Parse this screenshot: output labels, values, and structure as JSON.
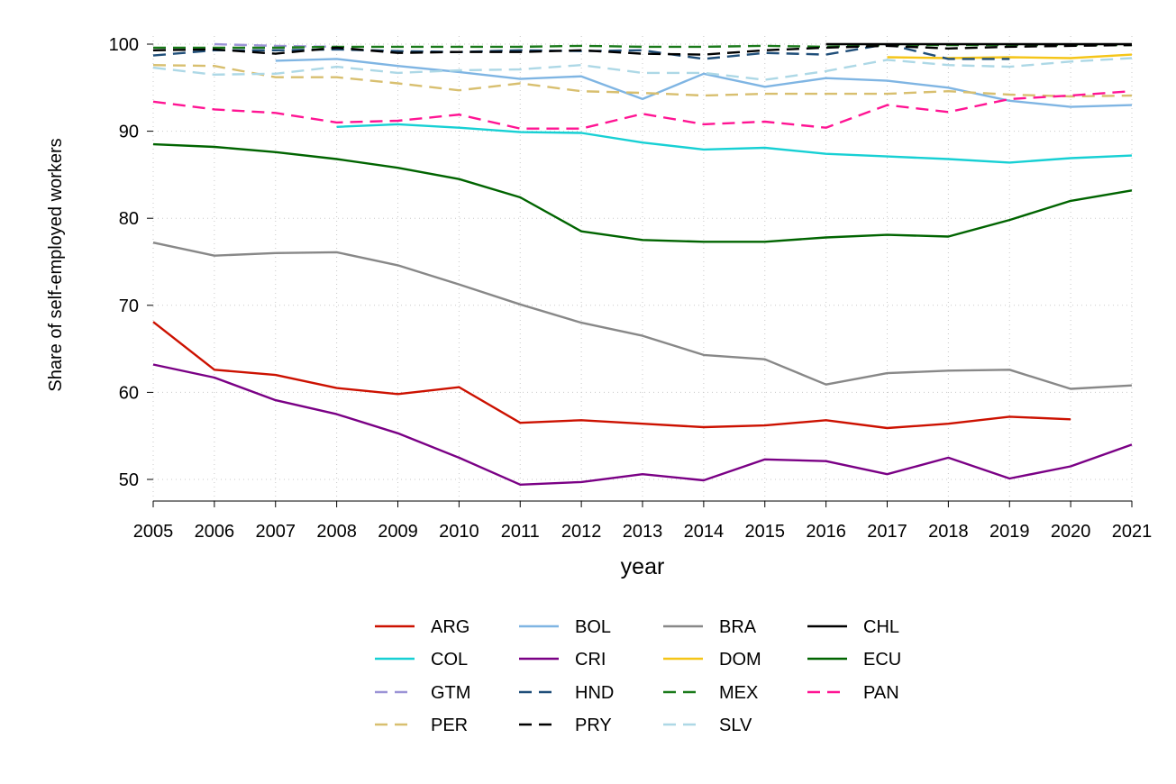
{
  "chart_data": {
    "type": "line",
    "title": "",
    "xlabel": "year",
    "ylabel": "Share of self-employed workers",
    "xlim": [
      2005,
      2021
    ],
    "ylim": [
      47.5,
      100
    ],
    "x_ticks": [
      2005,
      2006,
      2007,
      2008,
      2009,
      2010,
      2011,
      2012,
      2013,
      2014,
      2015,
      2016,
      2017,
      2018,
      2019,
      2020,
      2021
    ],
    "y_ticks": [
      50,
      60,
      70,
      80,
      90,
      100
    ],
    "grid": true,
    "legend_position": "bottom",
    "x": [
      2005,
      2006,
      2007,
      2008,
      2009,
      2010,
      2011,
      2012,
      2013,
      2014,
      2015,
      2016,
      2017,
      2018,
      2019,
      2020,
      2021
    ],
    "series": [
      {
        "name": "ARG",
        "color": "#cc1100",
        "dashed": false,
        "values": [
          68.1,
          62.6,
          62.0,
          60.5,
          59.8,
          60.6,
          56.5,
          56.8,
          56.4,
          56.0,
          56.2,
          56.8,
          55.9,
          56.4,
          57.2,
          56.9,
          null
        ]
      },
      {
        "name": "BOL",
        "color": "#7fb5e3",
        "dashed": false,
        "values": [
          null,
          null,
          98.1,
          98.3,
          97.5,
          96.8,
          96.0,
          96.3,
          93.7,
          96.6,
          95.1,
          96.1,
          95.8,
          95.0,
          93.5,
          92.8,
          93.0
        ]
      },
      {
        "name": "BRA",
        "color": "#888888",
        "dashed": false,
        "values": [
          77.2,
          75.7,
          76.0,
          76.1,
          74.6,
          72.4,
          70.1,
          68.0,
          66.5,
          64.3,
          63.8,
          60.9,
          62.2,
          62.5,
          62.6,
          60.4,
          60.8
        ]
      },
      {
        "name": "CHL",
        "color": "#000000",
        "dashed": false,
        "values": [
          null,
          null,
          null,
          null,
          null,
          null,
          null,
          null,
          null,
          null,
          null,
          100.0,
          100.0,
          100.0,
          100.0,
          100.0,
          100.0
        ]
      },
      {
        "name": "COL",
        "color": "#17d0d4",
        "dashed": false,
        "values": [
          null,
          null,
          null,
          90.5,
          90.8,
          90.4,
          89.9,
          89.8,
          88.7,
          87.9,
          88.1,
          87.4,
          87.1,
          86.8,
          86.4,
          86.9,
          87.2
        ]
      },
      {
        "name": "CRI",
        "color": "#7a0085",
        "dashed": false,
        "values": [
          63.2,
          61.7,
          59.1,
          57.5,
          55.3,
          52.5,
          49.4,
          49.7,
          50.6,
          49.9,
          52.3,
          52.1,
          50.6,
          52.5,
          50.1,
          51.5,
          54.0
        ]
      },
      {
        "name": "DOM",
        "color": "#f5c518",
        "dashed": false,
        "values": [
          null,
          null,
          null,
          null,
          null,
          null,
          null,
          null,
          null,
          null,
          null,
          null,
          98.5,
          98.4,
          98.5,
          98.4,
          98.8
        ]
      },
      {
        "name": "ECU",
        "color": "#006400",
        "dashed": false,
        "values": [
          88.5,
          88.2,
          87.6,
          86.8,
          85.8,
          84.5,
          82.4,
          78.5,
          77.5,
          77.3,
          77.3,
          77.8,
          78.1,
          77.9,
          79.8,
          82.0,
          83.2
        ]
      },
      {
        "name": "GTM",
        "color": "#9b93d6",
        "dashed": true,
        "values": [
          null,
          100.0,
          99.8,
          99.7,
          null,
          null,
          null,
          null,
          null,
          null,
          null,
          null,
          null,
          null,
          null,
          null,
          null
        ]
      },
      {
        "name": "HND",
        "color": "#1f4e79",
        "dashed": true,
        "values": [
          98.7,
          99.3,
          99.3,
          99.4,
          99.2,
          99.1,
          99.3,
          99.2,
          99.3,
          98.3,
          99.0,
          98.8,
          100.0,
          98.3,
          98.3,
          null,
          null
        ]
      },
      {
        "name": "MEX",
        "color": "#1a7a1a",
        "dashed": true,
        "values": [
          99.6,
          99.6,
          99.6,
          99.7,
          99.7,
          99.7,
          99.7,
          99.8,
          99.7,
          99.7,
          99.8,
          99.7,
          99.9,
          99.9,
          99.9,
          99.9,
          99.9
        ]
      },
      {
        "name": "PAN",
        "color": "#ff1493",
        "dashed": true,
        "values": [
          93.4,
          92.5,
          92.1,
          91.0,
          91.2,
          91.9,
          90.3,
          90.3,
          92.0,
          90.8,
          91.1,
          90.4,
          93.0,
          92.2,
          93.7,
          94.1,
          94.6
        ]
      },
      {
        "name": "PER",
        "color": "#d8bf6f",
        "dashed": true,
        "values": [
          97.6,
          97.5,
          96.2,
          96.2,
          95.5,
          94.7,
          95.5,
          94.6,
          94.4,
          94.1,
          94.3,
          94.3,
          94.3,
          94.6,
          94.2,
          94.0,
          94.1
        ]
      },
      {
        "name": "PRY",
        "color": "#000000",
        "dashed": true,
        "values": [
          99.3,
          99.4,
          98.9,
          99.6,
          99.0,
          99.1,
          99.1,
          99.3,
          98.9,
          98.8,
          99.3,
          99.6,
          99.8,
          99.5,
          99.7,
          99.8,
          99.9
        ]
      },
      {
        "name": "SLV",
        "color": "#add8e6",
        "dashed": true,
        "values": [
          97.3,
          96.5,
          96.6,
          97.4,
          96.7,
          97.0,
          97.1,
          97.6,
          96.7,
          96.7,
          95.9,
          96.9,
          98.2,
          97.6,
          97.4,
          98.0,
          98.4
        ]
      }
    ],
    "legend_order": [
      "ARG",
      "BOL",
      "BRA",
      "CHL",
      "COL",
      "CRI",
      "DOM",
      "ECU",
      "GTM",
      "HND",
      "MEX",
      "PAN",
      "PER",
      "PRY",
      "SLV"
    ]
  }
}
